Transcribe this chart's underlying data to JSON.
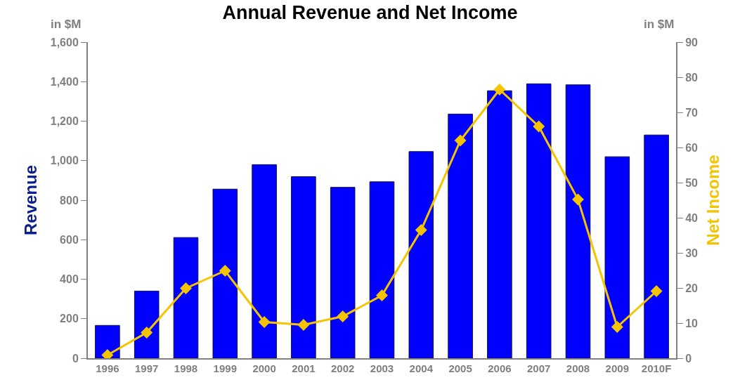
{
  "chart_data": {
    "type": "bar",
    "title": "Annual Revenue and Net Income",
    "ylabel": "Revenue",
    "y2label": "Net Income",
    "annotations": [
      "in $M",
      "in $M"
    ],
    "categories": [
      "1996",
      "1997",
      "1998",
      "1999",
      "2000",
      "2001",
      "2002",
      "2003",
      "2004",
      "2005",
      "2006",
      "2007",
      "2008",
      "2009",
      "2010F"
    ],
    "series": [
      {
        "color": "#0000ff",
        "values": [
          166,
          340,
          611,
          856,
          980,
          919,
          865,
          893,
          1046,
          1236,
          1354,
          1389,
          1384,
          1020,
          1130
        ]
      },
      {
        "type": "line",
        "axis": "y2",
        "color": "#f5c400",
        "marker": "diamond",
        "values": [
          0.9,
          7.3,
          19.9,
          24.9,
          10.3,
          9.5,
          11.9,
          17.9,
          36.5,
          62,
          76.5,
          66,
          45.2,
          8.9,
          19.1
        ]
      }
    ],
    "ylim": [
      0,
      1600
    ],
    "yticks": [
      0,
      {
        "value": 200,
        "label": "200"
      },
      {
        "value": 400,
        "label": "400"
      },
      {
        "value": 600,
        "label": "600"
      },
      {
        "value": 800,
        "label": "800"
      },
      {
        "value": 1000,
        "label": "1,000"
      },
      {
        "value": 1200,
        "label": "1,200"
      },
      {
        "value": 1400,
        "label": "1,400"
      },
      {
        "value": 1600,
        "label": "1,600"
      }
    ],
    "y2lim": [
      0,
      90
    ],
    "y2ticks": [
      0,
      10,
      20,
      30,
      40,
      50,
      60,
      70,
      80,
      90
    ],
    "legend": false
  }
}
